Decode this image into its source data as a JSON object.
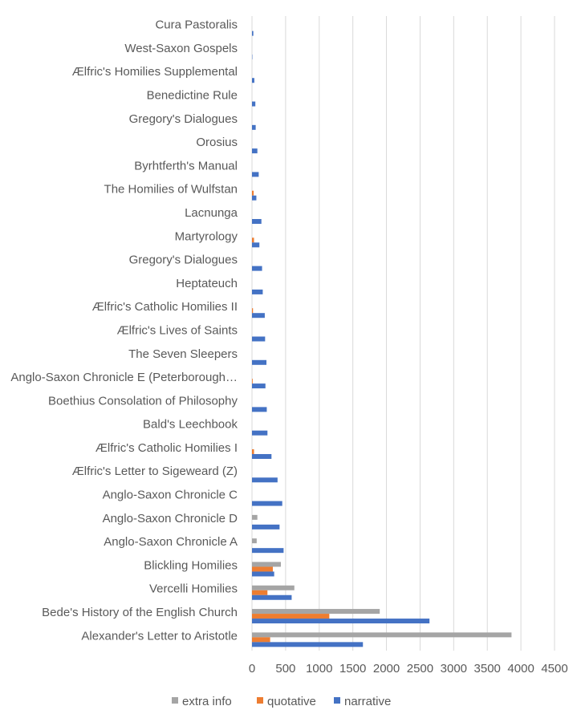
{
  "chart_data": {
    "type": "bar",
    "orientation": "horizontal",
    "grid": true,
    "legend_position": "bottom",
    "xlim": [
      0,
      4500
    ],
    "x_ticks": [
      "0",
      "500",
      "1000",
      "1500",
      "2000",
      "2500",
      "3000",
      "3500",
      "4000",
      "4500"
    ],
    "categories": [
      "Cura Pastoralis",
      "West-Saxon Gospels",
      "Ælfric's Homilies Supplemental",
      "Benedictine Rule",
      "Gregory's Dialogues",
      "Orosius",
      "Byrhtferth's Manual",
      "The Homilies of Wulfstan",
      "Lacnunga",
      "Martyrology",
      "Gregory's Dialogues",
      "Heptateuch",
      "Ælfric's Catholic Homilies II",
      "Ælfric's Lives of Saints",
      "The Seven Sleepers",
      "Anglo-Saxon Chronicle E (Peterborough…",
      "Boethius Consolation of Philosophy",
      "Bald's Leechbook",
      "Ælfric's Catholic Homilies I",
      "Ælfric's Letter to Sigeweard (Z)",
      "Anglo-Saxon Chronicle C",
      "Anglo-Saxon Chronicle D",
      "Anglo-Saxon Chronicle A",
      "Blickling Homilies",
      "Vercelli Homilies",
      "Bede's History of the English Church",
      "Alexander's Letter to Aristotle"
    ],
    "series": [
      {
        "name": "extra info",
        "color": "#a5a5a5",
        "values": [
          0,
          0,
          0,
          0,
          0,
          0,
          0,
          0,
          0,
          0,
          0,
          0,
          0,
          0,
          0,
          0,
          0,
          0,
          0,
          0,
          0,
          80,
          70,
          430,
          630,
          1900,
          3860
        ]
      },
      {
        "name": "quotative",
        "color": "#ed7d31",
        "values": [
          0,
          0,
          0,
          0,
          0,
          0,
          0,
          25,
          0,
          30,
          0,
          0,
          15,
          0,
          0,
          10,
          0,
          0,
          30,
          0,
          0,
          0,
          0,
          310,
          230,
          1150,
          270
        ]
      },
      {
        "name": "narrative",
        "color": "#4472c4",
        "values": [
          20,
          5,
          35,
          50,
          55,
          80,
          100,
          65,
          140,
          110,
          150,
          160,
          190,
          195,
          215,
          200,
          220,
          230,
          290,
          380,
          450,
          410,
          470,
          330,
          590,
          2640,
          1650
        ]
      }
    ]
  }
}
